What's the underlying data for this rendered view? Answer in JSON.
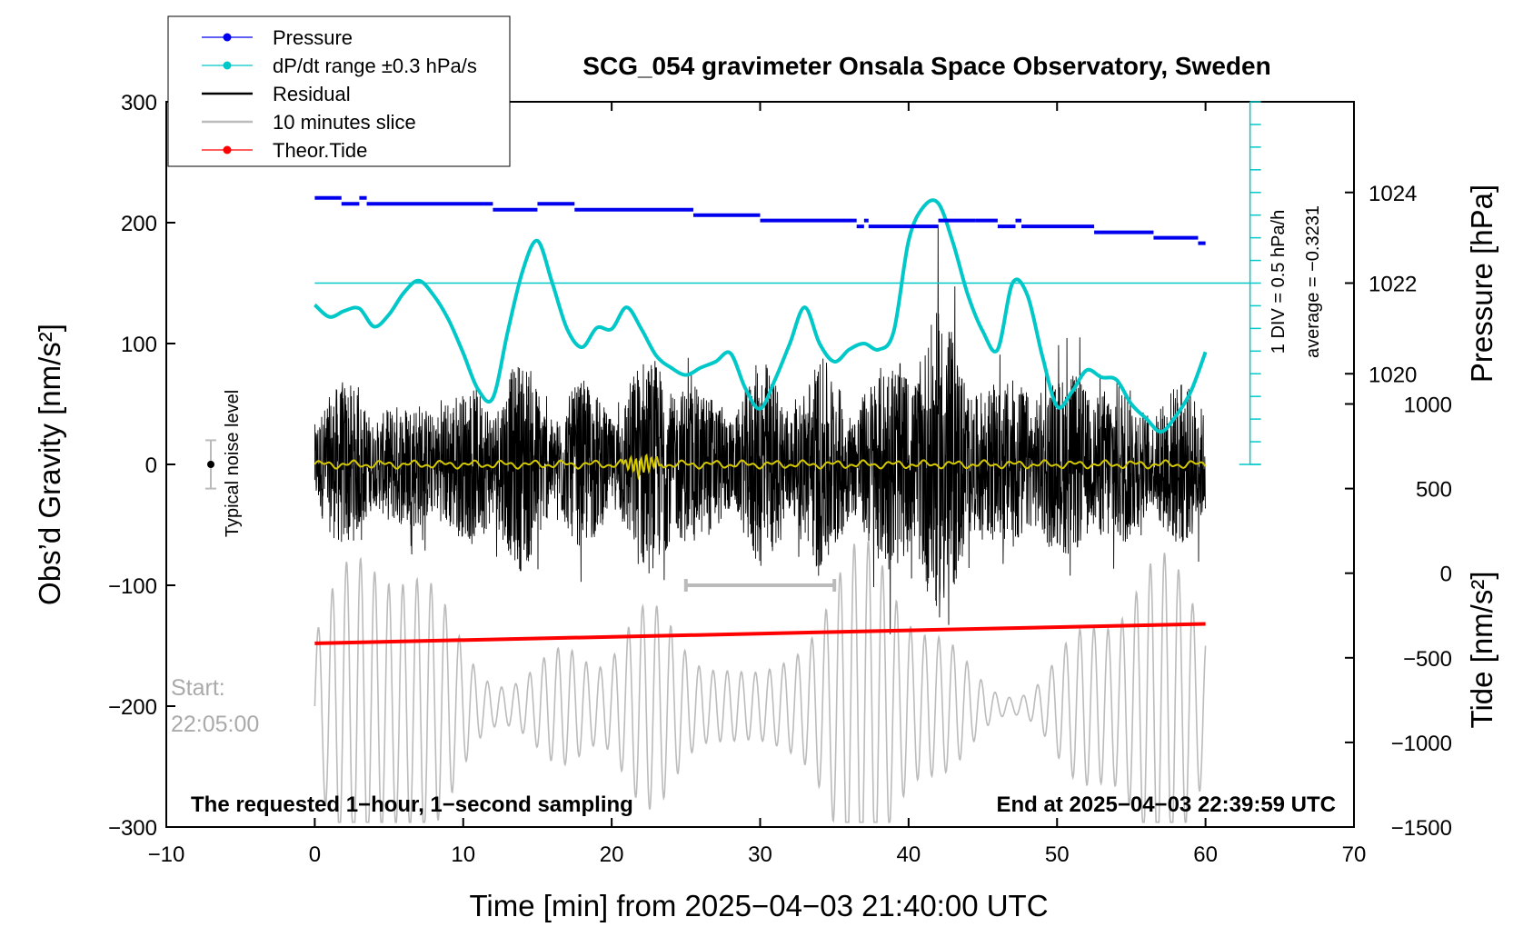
{
  "chart_data": {
    "type": "line",
    "title": "SCG_054 gravimeter Onsala Space Observatory, Sweden",
    "xlabel": "Time [min] from 2025−04−03 21:40:00 UTC",
    "ylabel_left": "Obs’d Gravity [nm/s²]",
    "ylabel_right_top": "Pressure [hPa]",
    "ylabel_right_bottom": "Tide [nm/s²]",
    "xlim": [
      -10,
      70
    ],
    "ylim": [
      -300,
      300
    ],
    "xticks": [
      -10,
      0,
      10,
      20,
      30,
      40,
      50,
      60,
      70
    ],
    "xtick_labels": [
      "−10",
      "0",
      "10",
      "20",
      "30",
      "40",
      "50",
      "60",
      "70"
    ],
    "yticks": [
      -300,
      -200,
      -100,
      0,
      100,
      200,
      300
    ],
    "ytick_labels": [
      "−300",
      "−200",
      "−100",
      "0",
      "100",
      "200",
      "300"
    ],
    "pressure_axis": {
      "ticks": [
        1020,
        1022,
        1024
      ],
      "tick_labels": [
        "1020",
        "1022",
        "1024"
      ],
      "map_left": [
        [
          1020,
          75
        ],
        [
          1024,
          225
        ]
      ]
    },
    "tide_axis": {
      "ticks": [
        -1500,
        -1000,
        -500,
        0,
        500,
        1000
      ],
      "tick_labels": [
        "−1500",
        "−1000",
        "−500",
        "0",
        "500",
        "1000"
      ],
      "map_left": [
        [
          -1500,
          -300
        ],
        [
          1000,
          50
        ]
      ]
    },
    "legend": [
      {
        "label": "Pressure",
        "color": "#0000ee",
        "marker": true
      },
      {
        "label": "dP/dt range ±0.3 hPa/s",
        "color": "#00c8c8",
        "marker": true
      },
      {
        "label": "Residual",
        "color": "#000000",
        "marker": false
      },
      {
        "label": "10 minutes slice",
        "color": "#bbbbbb",
        "marker": false
      },
      {
        "label": "Theor.Tide",
        "color": "#ff0000",
        "marker": true
      }
    ],
    "series": [
      {
        "name": "Pressure",
        "unit": "hPa",
        "color": "#0000ee",
        "x": [
          0,
          1.8,
          1.8,
          3.0,
          3.0,
          3.5,
          3.5,
          12.0,
          12.0,
          15.0,
          15.0,
          17.5,
          17.5,
          25.5,
          25.5,
          30.0,
          30.0,
          36.5,
          36.5,
          37.0,
          37.0,
          37.3,
          37.3,
          42.0,
          42.0,
          44.5,
          44.5,
          46.0,
          46.0,
          47.2,
          47.2,
          47.6,
          47.6,
          52.5,
          52.5,
          56.5,
          56.5,
          59.5,
          59.5,
          60
        ],
        "values": [
          1023.88,
          1023.88,
          1023.75,
          1023.75,
          1023.88,
          1023.88,
          1023.75,
          1023.75,
          1023.62,
          1023.62,
          1023.75,
          1023.75,
          1023.62,
          1023.62,
          1023.5,
          1023.5,
          1023.38,
          1023.38,
          1023.25,
          1023.25,
          1023.38,
          1023.38,
          1023.25,
          1023.25,
          1023.38,
          1023.38,
          1023.38,
          1023.38,
          1023.25,
          1023.25,
          1023.38,
          1023.38,
          1023.25,
          1023.25,
          1023.12,
          1023.12,
          1023.0,
          1023.0,
          1022.88,
          1022.88
        ]
      },
      {
        "name": "dP/dt",
        "unit": "nm/s² plot units",
        "color": "#00c8c8",
        "x": [
          0,
          1,
          2,
          3,
          4,
          5,
          6,
          7,
          8,
          9,
          10,
          11,
          12,
          13,
          14,
          15,
          16,
          17,
          18,
          19,
          20,
          21,
          22,
          23,
          24,
          25,
          26,
          27,
          28,
          29,
          30,
          31,
          32,
          33,
          34,
          35,
          36,
          37,
          38,
          39,
          40,
          41,
          42,
          43,
          44,
          45,
          46,
          47,
          48,
          49,
          50,
          51,
          52,
          53,
          54,
          55,
          56,
          57,
          58,
          59,
          60
        ],
        "values": [
          132,
          122,
          127,
          129,
          114,
          124,
          142,
          152,
          140,
          120,
          92,
          62,
          55,
          110,
          160,
          185,
          150,
          112,
          97,
          113,
          112,
          130,
          112,
          90,
          80,
          74,
          80,
          85,
          92,
          63,
          46,
          70,
          100,
          130,
          100,
          85,
          95,
          100,
          95,
          110,
          185,
          213,
          216,
          183,
          140,
          110,
          95,
          150,
          140,
          90,
          48,
          60,
          78,
          72,
          70,
          50,
          38,
          27,
          40,
          60,
          93
        ]
      },
      {
        "name": "Theor.Tide",
        "unit": "nm/s²",
        "color": "#ff0000",
        "x": [
          0,
          60
        ],
        "values": [
          -148,
          -132
        ]
      }
    ],
    "residual_envelope": {
      "x": [
        0,
        2,
        4,
        6,
        8,
        10,
        12,
        14,
        16,
        18,
        20,
        22,
        24,
        26,
        28,
        30,
        32,
        34,
        36,
        38,
        40,
        42,
        44,
        46,
        48,
        50,
        52,
        54,
        56,
        58,
        60
      ],
      "amplitude": [
        60,
        70,
        60,
        50,
        70,
        60,
        80,
        90,
        60,
        70,
        60,
        90,
        100,
        60,
        60,
        90,
        70,
        90,
        70,
        80,
        110,
        130,
        100,
        60,
        90,
        70,
        90,
        70,
        60,
        70,
        60
      ]
    },
    "ten_minute_slice": {
      "x_start": 25,
      "x_end": 35,
      "y": -100
    },
    "noise_level": {
      "x": -7,
      "y": 0,
      "half_range": 20,
      "label": "Typical noise level"
    },
    "dpdt_reference_line": 150,
    "scale_bar": {
      "label": "1 DIV = 0.5 hPa/h",
      "average": "average = −0.3231"
    },
    "annotations": {
      "start_label": "Start:",
      "start_time": "22:05:00",
      "bottom_left": "The requested 1−hour, 1−second sampling",
      "bottom_right": "End at 2025−04−03 22:39:59 UTC"
    }
  }
}
